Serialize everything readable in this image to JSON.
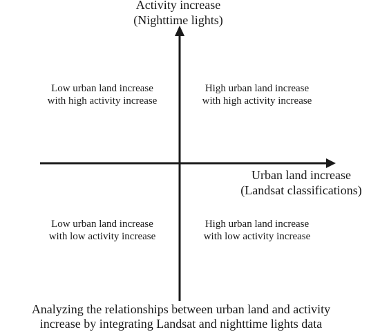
{
  "diagram": {
    "y_axis_label": [
      "Activity increase",
      "(Nighttime lights)"
    ],
    "x_axis_label": [
      "Urban land increase",
      "(Landsat classifications)"
    ],
    "quadrants": {
      "top_left": [
        "Low urban land increase",
        "with high activity increase"
      ],
      "top_right": [
        "High urban land increase",
        "with high activity increase"
      ],
      "bottom_left": [
        "Low urban land increase",
        "with low activity increase"
      ],
      "bottom_right": [
        "High urban land increase",
        "with low activity increase"
      ]
    },
    "caption": [
      "Analyzing the relationships between urban land and activity",
      "increase by integrating Landsat and nighttime lights data"
    ],
    "colors": {
      "axis": "#1a1a1a",
      "text": "#1a1a1a",
      "background": "#ffffff"
    }
  }
}
